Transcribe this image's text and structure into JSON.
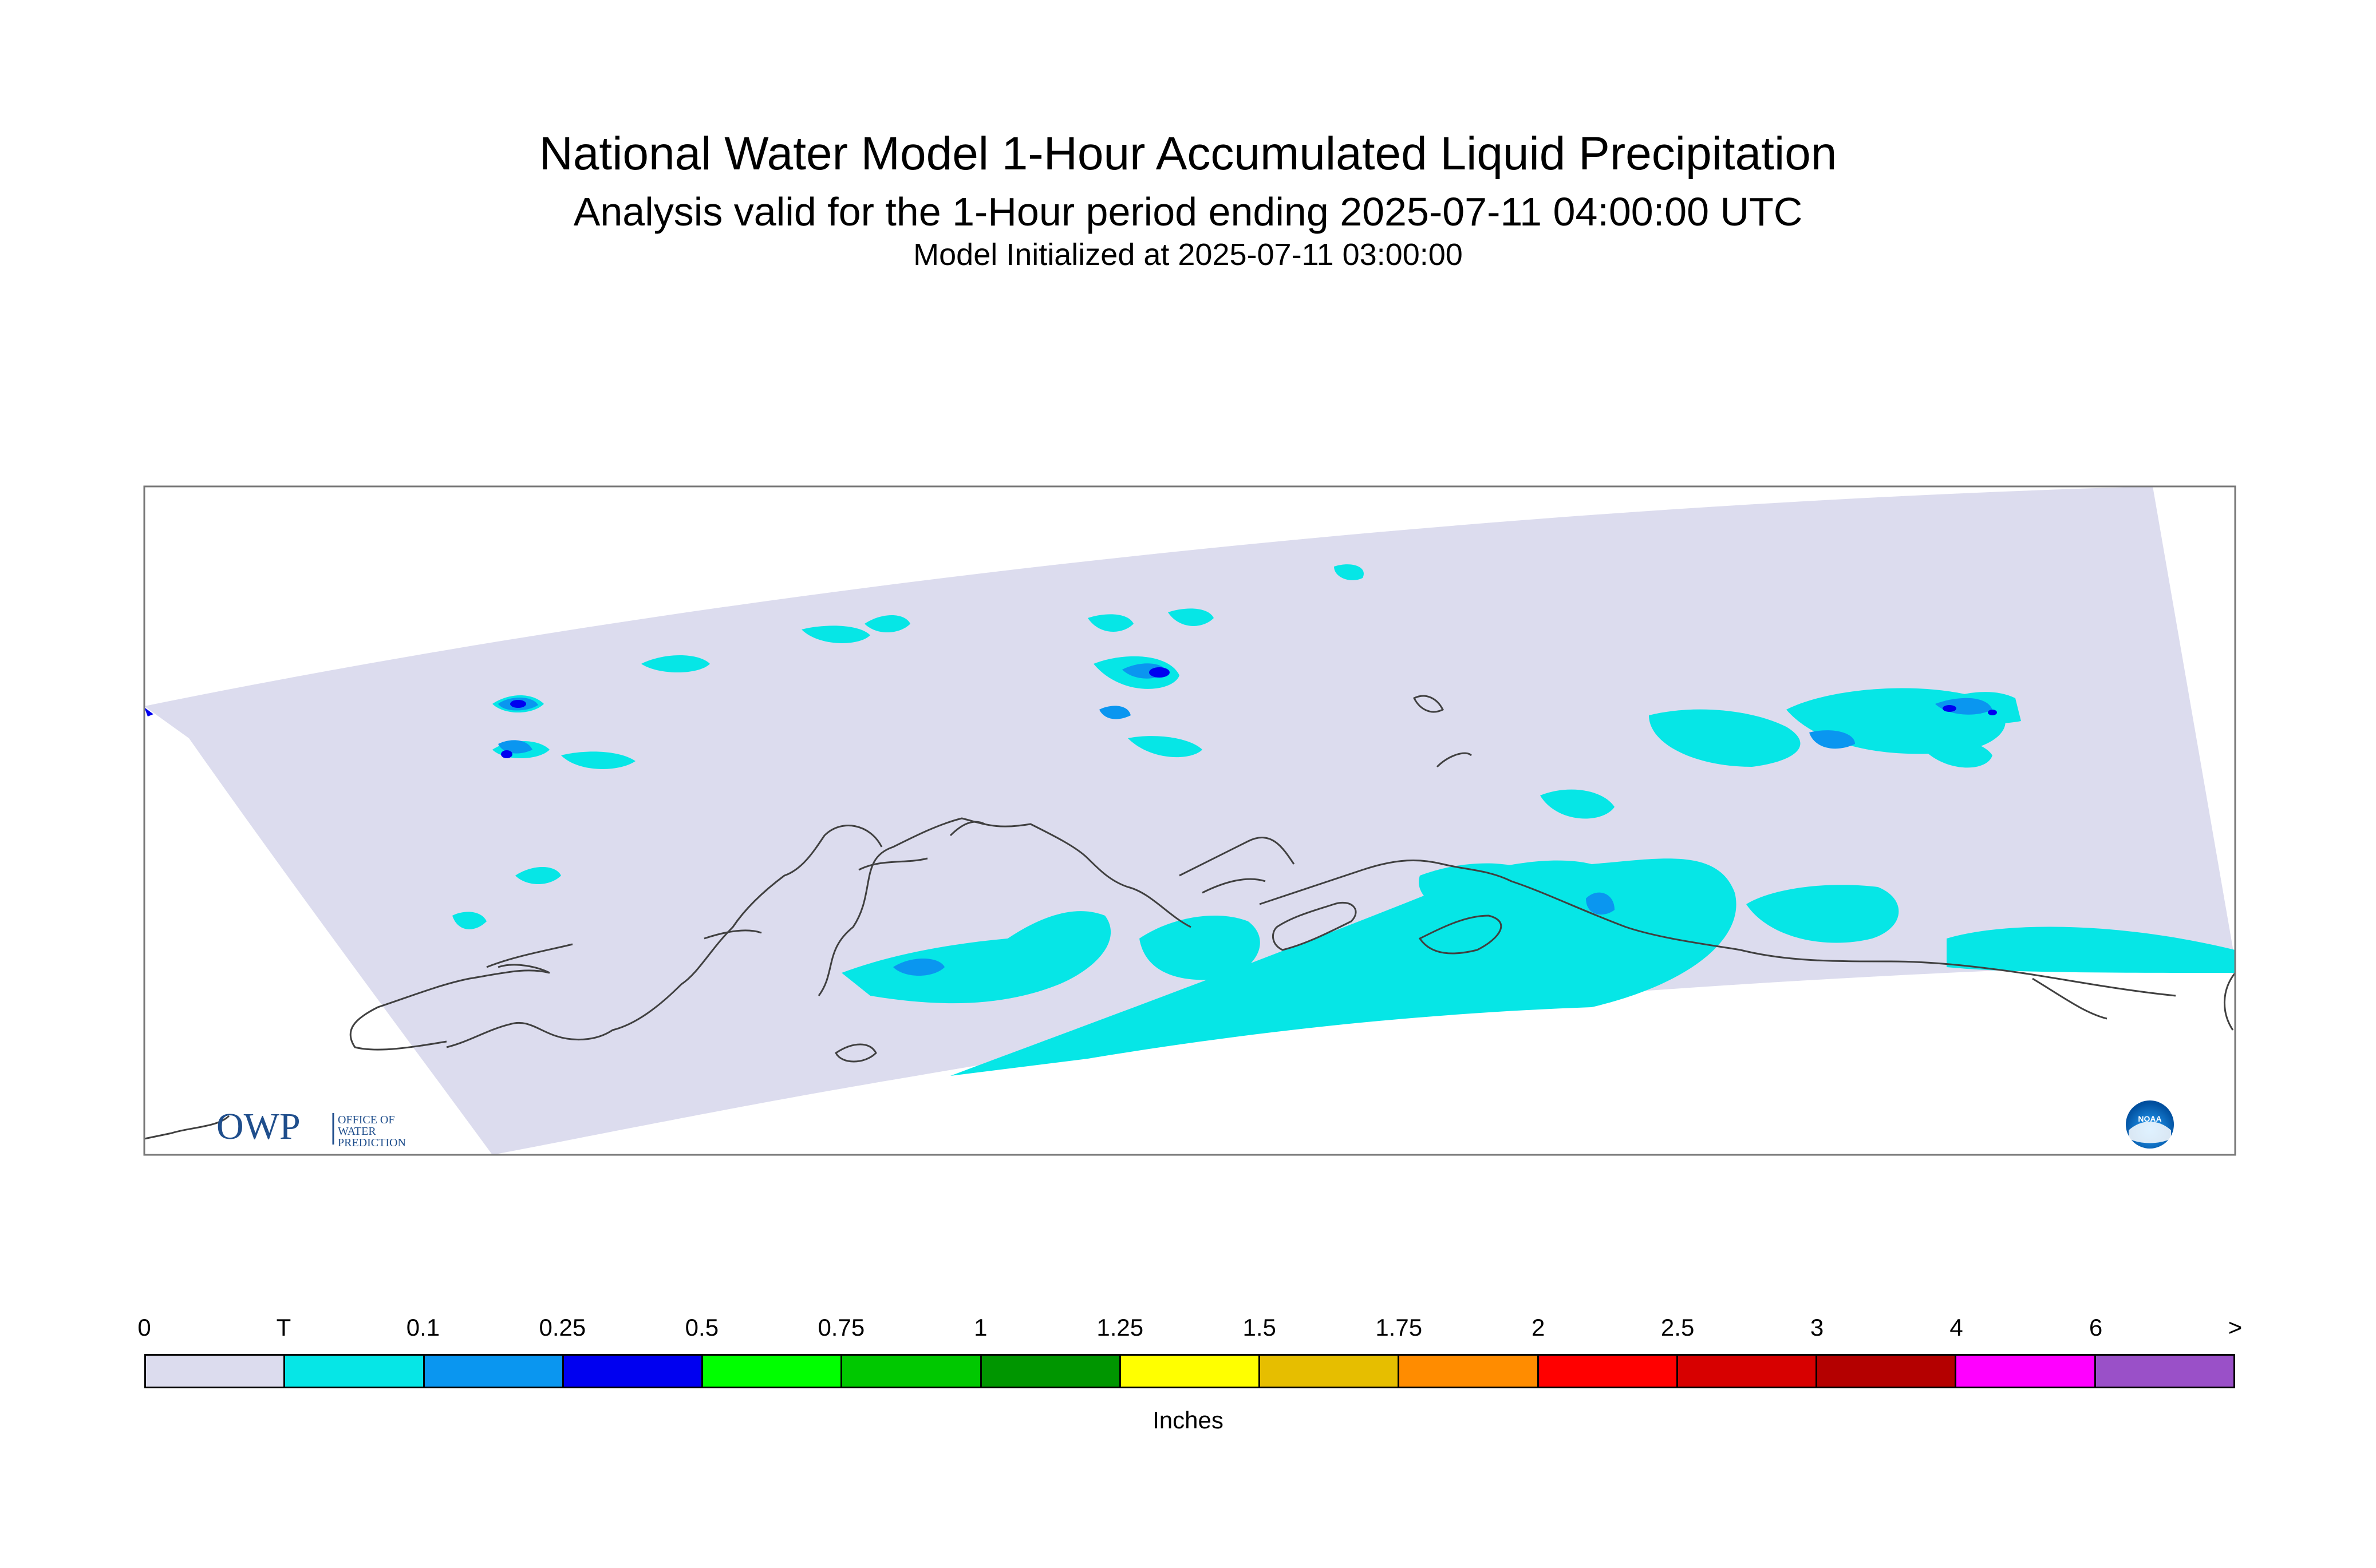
{
  "title": "National Water Model 1-Hour Accumulated Liquid Precipitation",
  "subtitle": "Analysis valid for the 1-Hour period ending 2025-07-11 04:00:00 UTC",
  "init_line": "Model Initialized at 2025-07-11 03:00:00",
  "owp_logo": {
    "mark": "OWP",
    "text": [
      "OFFICE OF",
      "WATER",
      "PREDICTION"
    ]
  },
  "noaa_logo": {
    "text": "NOAA"
  },
  "legend": {
    "labels": [
      "0",
      "T",
      "0.1",
      "0.25",
      "0.5",
      "0.75",
      "1",
      "1.25",
      "1.5",
      "1.75",
      "2",
      "2.5",
      "3",
      "4",
      "6",
      ">"
    ],
    "colors": [
      "#dcdcee",
      "#06e6e6",
      "#0a96f0",
      "#0000f0",
      "#00ff00",
      "#00c800",
      "#009600",
      "#ffff00",
      "#e6be00",
      "#ff8c00",
      "#ff0000",
      "#d70000",
      "#b40000",
      "#ff00ff",
      "#9a50c8"
    ],
    "units": "Inches"
  },
  "map_colors": {
    "no_precip": "#dcdcee",
    "trace": "#06e6e6",
    "light": "#0a96f0",
    "moderate": "#0000f0"
  }
}
